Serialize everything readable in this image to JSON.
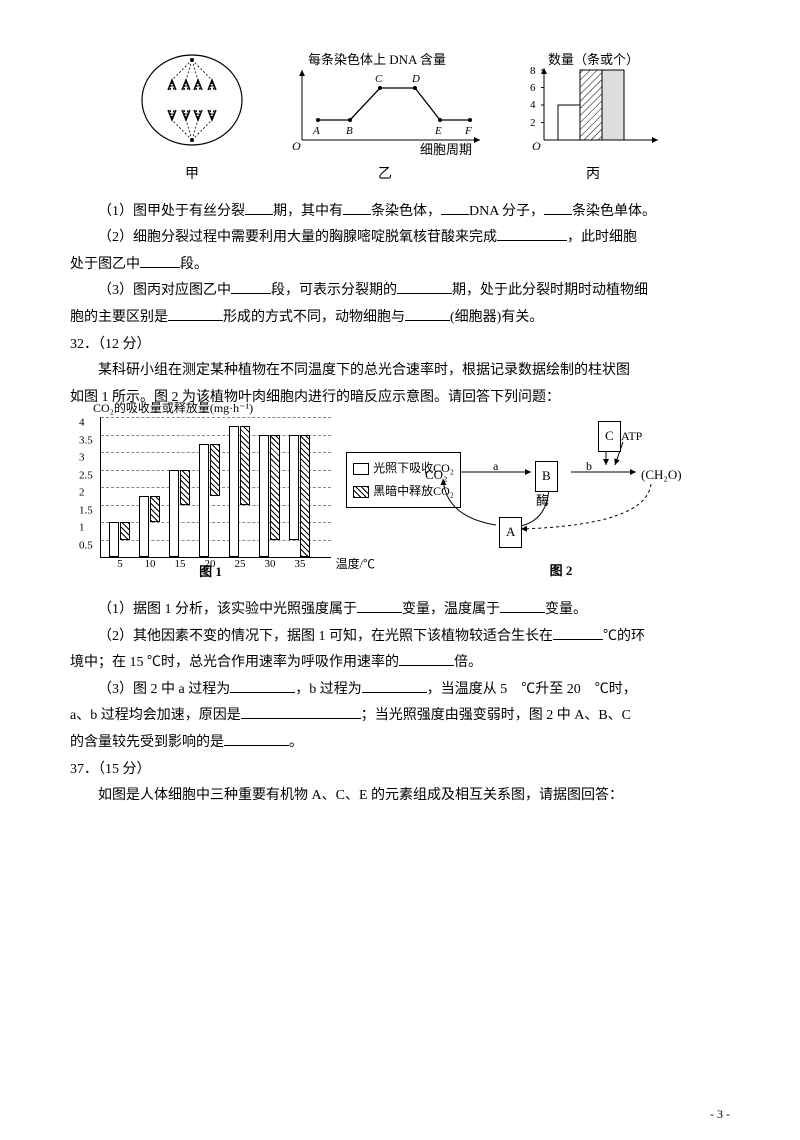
{
  "topfigs": {
    "cell_label": "甲",
    "graph2": {
      "title": "每条染色体上 DNA 含量",
      "xaxis": "细胞周期",
      "points": [
        "A",
        "B",
        "C",
        "D",
        "E",
        "F"
      ],
      "label": "乙"
    },
    "barchart": {
      "title": "数量（条或个）",
      "yticks": [
        "2",
        "4",
        "6",
        "8"
      ],
      "values": [
        4,
        8,
        8
      ],
      "label": "丙"
    }
  },
  "q31": {
    "l1a": "（1）图甲处于有丝分裂",
    "l1b": "期，其中有",
    "l1c": "条染色体，",
    "l1d": "DNA 分子，",
    "l1e": "条染色单体。",
    "l2a": "（2）细胞分裂过程中需要利用大量的胸腺嘧啶脱氧核苷酸来完成",
    "l2b": "，此时细胞",
    "l2c": "处于图乙中",
    "l2d": "段。",
    "l3a": "（3）图丙对应图乙中",
    "l3b": "段，可表示分裂期的",
    "l3c": "期，处于此分裂时期时动植物细",
    "l3d": "胞的主要区别是",
    "l3e": "形成的方式不同，动物细胞与",
    "l3f": "(细胞器)有关。"
  },
  "q32": {
    "num": "32．（12 分）",
    "intro1": "某科研小组在测定某种植物在不同温度下的总光合速率时，根据记录数据绘制的柱状图",
    "intro2": "如图 1 所示。图 2 为该植物叶肉细胞内进行的暗反应示意图。请回答下列问题：",
    "chart1": {
      "ylabel": "CO₂的吸收量或释放量(mg·h⁻¹)",
      "yticks": [
        "0.5",
        "1",
        "1.5",
        "2",
        "2.5",
        "3",
        "3.5",
        "4"
      ],
      "xticks": [
        "5",
        "10",
        "15",
        "20",
        "25",
        "30",
        "35"
      ],
      "xunit": "温度/℃",
      "series1_label": "光照下吸收CO₂",
      "series2_label": "黑暗中释放CO₂",
      "s1": [
        1.0,
        1.75,
        2.5,
        3.25,
        3.75,
        3.5,
        3.0
      ],
      "s2": [
        0.5,
        0.75,
        1.0,
        1.5,
        2.25,
        3.0,
        3.5
      ],
      "caption": "图 1"
    },
    "diag2": {
      "co2": "CO₂",
      "a": "a",
      "B": "B",
      "b": "b",
      "C": "C",
      "atp": "ATP",
      "prod": "(CH₂O)",
      "enzyme": "酶",
      "A": "A",
      "caption": "图 2"
    },
    "p1a": "（1）据图 1 分析，该实验中光照强度属于",
    "p1b": "变量，温度属于",
    "p1c": "变量。",
    "p2a": "（2）其他因素不变的情况下，据图 1 可知，在光照下该植物较适合生长在",
    "p2b": "℃的环",
    "p2c": "境中；在 15 ℃时，总光合作用速率为呼吸作用速率的",
    "p2d": "倍。",
    "p3a": "（3）图 2 中 a 过程为",
    "p3b": "，b 过程为",
    "p3c": "，当温度从 5　℃升至 20　℃时，",
    "p3d": "a、b 过程均会加速，原因是",
    "p3e": "；当光照强度由强变弱时，图 2 中 A、B、C",
    "p3f": "的含量较先受到影响的是",
    "p3g": "。"
  },
  "q37": {
    "num": "37．（15 分）",
    "intro": "如图是人体细胞中三种重要有机物 A、C、E 的元素组成及相互关系图，请据图回答："
  },
  "pagenum": "- 3 -"
}
